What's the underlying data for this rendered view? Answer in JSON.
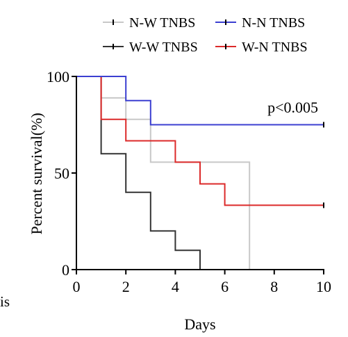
{
  "chart_data": {
    "type": "line",
    "subtype": "kaplan-meier-survival",
    "title": "",
    "xlabel": "Days",
    "ylabel": "Percent survival(%)",
    "xlim": [
      0,
      10
    ],
    "ylim": [
      0,
      100
    ],
    "xticks": [
      0,
      2,
      4,
      6,
      8,
      10
    ],
    "yticks": [
      0,
      50,
      100
    ],
    "grid": false,
    "legend_position": "top",
    "annotation": "p<0.005",
    "series": [
      {
        "name": "N-W TNBS",
        "color": "#c8c8c8",
        "x": [
          0,
          1,
          2,
          3,
          7,
          10
        ],
        "y": [
          100,
          88.9,
          77.8,
          55.6,
          0,
          0
        ],
        "censor_x": []
      },
      {
        "name": "N-N TNBS",
        "color": "#3b3fd1",
        "x": [
          0,
          2,
          3,
          10
        ],
        "y": [
          100,
          87.5,
          75,
          75
        ],
        "censor_x": [
          10
        ]
      },
      {
        "name": "W-W TNBS",
        "color": "#333333",
        "x": [
          0,
          1,
          2,
          3,
          4,
          5
        ],
        "y": [
          100,
          60,
          40,
          20,
          10,
          0
        ],
        "censor_x": []
      },
      {
        "name": "W-N TNBS",
        "color": "#dc2a2a",
        "x": [
          0,
          1,
          2,
          4,
          5,
          6,
          10
        ],
        "y": [
          100,
          77.8,
          66.7,
          55.6,
          44.4,
          33.3,
          33.3
        ],
        "censor_x": [
          10
        ]
      }
    ]
  },
  "page": {
    "stray_text": "is"
  }
}
